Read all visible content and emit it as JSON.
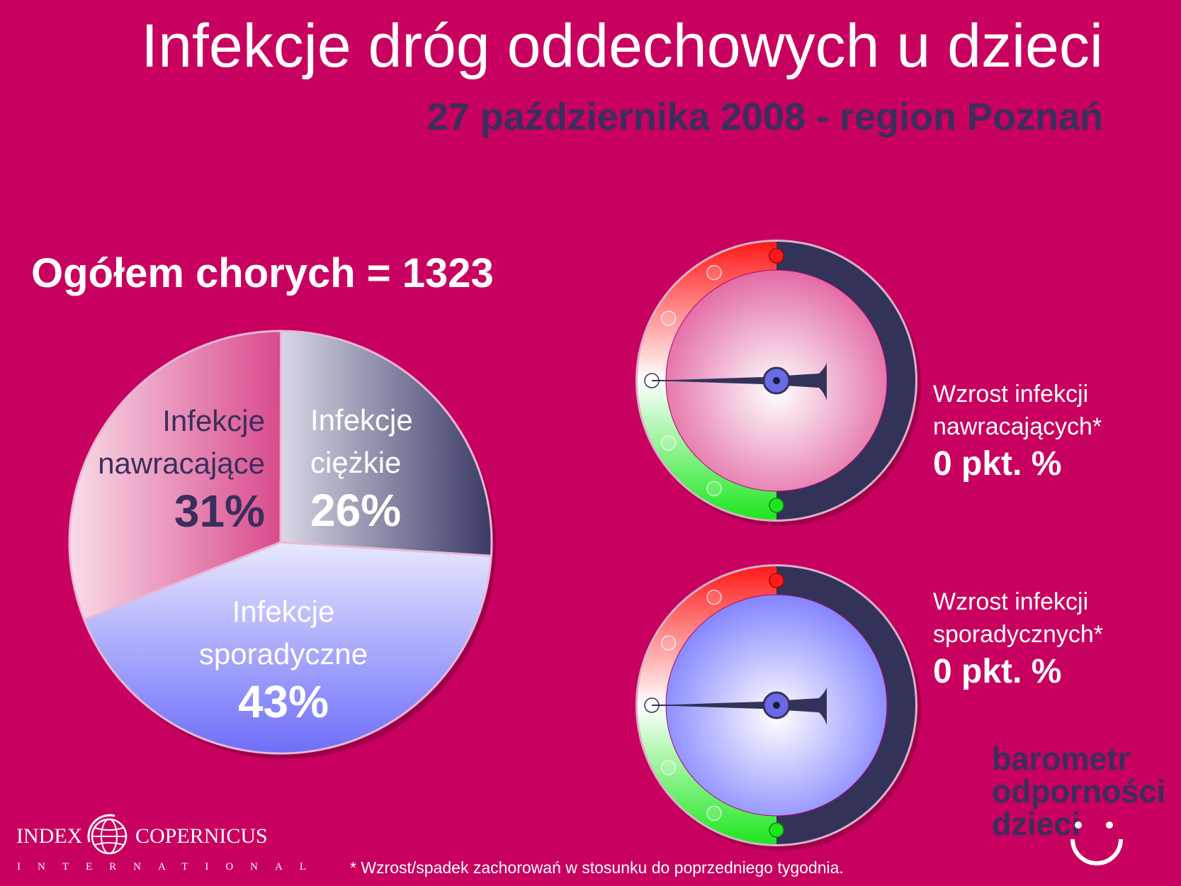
{
  "title": "Infekcje dróg oddechowych u dzieci",
  "subtitle": "27 października 2008 - region Poznań",
  "total_label": "Ogółem chorych = 1323",
  "chart_data": {
    "type": "pie",
    "slices": [
      {
        "line1": "Infekcje",
        "line2": "ciężkie",
        "value": 26,
        "value_label": "26%",
        "colors": [
          "#d8d8e6",
          "#3a3a66"
        ],
        "text_color": "#ffffff"
      },
      {
        "line1": "Infekcje",
        "line2": "sporadyczne",
        "value": 43,
        "value_label": "43%",
        "colors": [
          "#e8e8ff",
          "#6e6ef8"
        ],
        "text_color": "#ffffff"
      },
      {
        "line1": "Infekcje",
        "line2": "nawracające",
        "value": 31,
        "value_label": "31%",
        "colors": [
          "#f8dce8",
          "#d94a8c"
        ],
        "text_color": "#3a2e5c"
      }
    ]
  },
  "gauges": [
    {
      "label_line1": "Wzrost infekcji",
      "label_line2": "nawracających*",
      "value_label": "0 pkt. %",
      "value": 0,
      "face_color": "#e05d9c"
    },
    {
      "label_line1": "Wzrost infekcji",
      "label_line2": "sporadycznych*",
      "value_label": "0 pkt. %",
      "value": 0,
      "face_color": "#7878ff"
    }
  ],
  "brand": {
    "line1": "barometr",
    "line2": "odporności",
    "line3": "dzieci"
  },
  "logo": {
    "left": "INDEX",
    "right": "COPERNICUS",
    "bottom": "INTERNATIONAL"
  },
  "footnote": "* Wzrost/spadek zachorowań w stosunku do poprzedniego tygodnia."
}
